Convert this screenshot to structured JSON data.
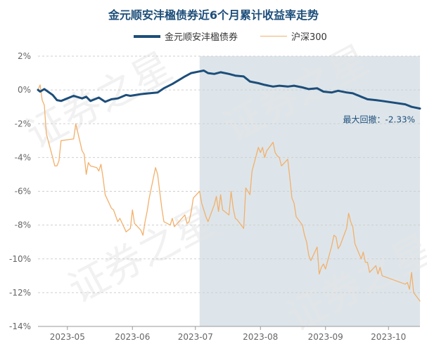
{
  "chart_data": {
    "type": "line",
    "title": "金元顺安沣楹债券近6个月累计收益率走势",
    "xlabel": "",
    "ylabel": "",
    "ylim": [
      -14,
      2
    ],
    "yticks": [
      "2%",
      "0%",
      "-2%",
      "-4%",
      "-6%",
      "-8%",
      "-10%",
      "-12%",
      "-14%"
    ],
    "xticks": [
      "2023-05",
      "2023-06",
      "2023-07",
      "2023-08",
      "2023-09",
      "2023-10"
    ],
    "x_start": "2023-04-17",
    "x_end": "2023-10-16",
    "grid": true,
    "legend_position": "top-center",
    "shaded_region": {
      "from": "2023-07-03",
      "to": "2023-10-16",
      "color": "#dde5ea"
    },
    "annotation": "最大回撤：-2.33%",
    "watermark": "证券之星",
    "colors": {
      "fund": "#1d4e7a",
      "index": "#f2b06c",
      "title": "#1d4e7a"
    },
    "series": [
      {
        "name": "金元顺安沣楹债券",
        "color": "#1d4e7a",
        "points": [
          [
            "2023-04-17",
            0.0
          ],
          [
            "2023-04-18",
            -0.1
          ],
          [
            "2023-04-20",
            0.05
          ],
          [
            "2023-04-24",
            -0.3
          ],
          [
            "2023-04-26",
            -0.6
          ],
          [
            "2023-04-28",
            -0.65
          ],
          [
            "2023-05-04",
            -0.35
          ],
          [
            "2023-05-08",
            -0.5
          ],
          [
            "2023-05-10",
            -0.4
          ],
          [
            "2023-05-12",
            -0.65
          ],
          [
            "2023-05-16",
            -0.45
          ],
          [
            "2023-05-19",
            -0.7
          ],
          [
            "2023-05-22",
            -0.55
          ],
          [
            "2023-05-25",
            -0.5
          ],
          [
            "2023-05-29",
            -0.3
          ],
          [
            "2023-05-31",
            -0.35
          ],
          [
            "2023-06-05",
            -0.25
          ],
          [
            "2023-06-09",
            -0.2
          ],
          [
            "2023-06-13",
            -0.15
          ],
          [
            "2023-06-16",
            0.1
          ],
          [
            "2023-06-20",
            0.35
          ],
          [
            "2023-06-26",
            0.8
          ],
          [
            "2023-06-29",
            1.0
          ],
          [
            "2023-07-03",
            1.1
          ],
          [
            "2023-07-05",
            1.15
          ],
          [
            "2023-07-07",
            1.0
          ],
          [
            "2023-07-10",
            0.95
          ],
          [
            "2023-07-13",
            1.05
          ],
          [
            "2023-07-17",
            0.95
          ],
          [
            "2023-07-20",
            0.85
          ],
          [
            "2023-07-24",
            0.8
          ],
          [
            "2023-07-27",
            0.5
          ],
          [
            "2023-07-31",
            0.4
          ],
          [
            "2023-08-03",
            0.3
          ],
          [
            "2023-08-07",
            0.2
          ],
          [
            "2023-08-10",
            0.25
          ],
          [
            "2023-08-14",
            0.2
          ],
          [
            "2023-08-17",
            0.25
          ],
          [
            "2023-08-21",
            0.15
          ],
          [
            "2023-08-24",
            0.05
          ],
          [
            "2023-08-28",
            0.1
          ],
          [
            "2023-08-31",
            -0.1
          ],
          [
            "2023-09-04",
            -0.15
          ],
          [
            "2023-09-07",
            -0.05
          ],
          [
            "2023-09-11",
            -0.15
          ],
          [
            "2023-09-14",
            -0.2
          ],
          [
            "2023-09-18",
            -0.4
          ],
          [
            "2023-09-21",
            -0.55
          ],
          [
            "2023-09-25",
            -0.6
          ],
          [
            "2023-09-28",
            -0.65
          ],
          [
            "2023-10-09",
            -0.85
          ],
          [
            "2023-10-12",
            -1.0
          ],
          [
            "2023-10-16",
            -1.1
          ]
        ]
      },
      {
        "name": "沪深300",
        "color": "#f2b06c",
        "points": [
          [
            "2023-04-17",
            0.0
          ],
          [
            "2023-04-18",
            0.3
          ],
          [
            "2023-04-19",
            -0.6
          ],
          [
            "2023-04-20",
            -0.9
          ],
          [
            "2023-04-21",
            -2.6
          ],
          [
            "2023-04-24",
            -4.0
          ],
          [
            "2023-04-25",
            -4.5
          ],
          [
            "2023-04-26",
            -4.5
          ],
          [
            "2023-04-27",
            -4.2
          ],
          [
            "2023-04-28",
            -3.0
          ],
          [
            "2023-05-04",
            -2.9
          ],
          [
            "2023-05-05",
            -2.0
          ],
          [
            "2023-05-08",
            -3.6
          ],
          [
            "2023-05-09",
            -3.8
          ],
          [
            "2023-05-10",
            -5.0
          ],
          [
            "2023-05-11",
            -4.3
          ],
          [
            "2023-05-12",
            -4.5
          ],
          [
            "2023-05-15",
            -4.6
          ],
          [
            "2023-05-16",
            -4.8
          ],
          [
            "2023-05-17",
            -4.4
          ],
          [
            "2023-05-18",
            -5.2
          ],
          [
            "2023-05-19",
            -6.2
          ],
          [
            "2023-05-22",
            -7.0
          ],
          [
            "2023-05-23",
            -7.1
          ],
          [
            "2023-05-25",
            -7.8
          ],
          [
            "2023-05-26",
            -7.6
          ],
          [
            "2023-05-29",
            -8.4
          ],
          [
            "2023-05-31",
            -8.2
          ],
          [
            "2023-06-01",
            -7.1
          ],
          [
            "2023-06-02",
            -7.9
          ],
          [
            "2023-06-05",
            -8.3
          ],
          [
            "2023-06-06",
            -8.6
          ],
          [
            "2023-06-07",
            -7.8
          ],
          [
            "2023-06-08",
            -7.2
          ],
          [
            "2023-06-09",
            -6.4
          ],
          [
            "2023-06-12",
            -4.6
          ],
          [
            "2023-06-13",
            -5.0
          ],
          [
            "2023-06-14",
            -6.0
          ],
          [
            "2023-06-15",
            -7.0
          ],
          [
            "2023-06-16",
            -7.8
          ],
          [
            "2023-06-19",
            -8.0
          ],
          [
            "2023-06-20",
            -7.6
          ],
          [
            "2023-06-21",
            -8.1
          ],
          [
            "2023-06-26",
            -7.4
          ],
          [
            "2023-06-27",
            -7.9
          ],
          [
            "2023-06-28",
            -7.8
          ],
          [
            "2023-06-29",
            -7.2
          ],
          [
            "2023-06-30",
            -6.4
          ],
          [
            "2023-07-03",
            -6.0
          ],
          [
            "2023-07-04",
            -6.7
          ],
          [
            "2023-07-05",
            -7.1
          ],
          [
            "2023-07-06",
            -7.5
          ],
          [
            "2023-07-07",
            -7.8
          ],
          [
            "2023-07-10",
            -6.8
          ],
          [
            "2023-07-11",
            -6.3
          ],
          [
            "2023-07-12",
            -7.2
          ],
          [
            "2023-07-13",
            -6.2
          ],
          [
            "2023-07-14",
            -7.1
          ],
          [
            "2023-07-17",
            -7.4
          ],
          [
            "2023-07-18",
            -6.0
          ],
          [
            "2023-07-19",
            -7.0
          ],
          [
            "2023-07-20",
            -7.6
          ],
          [
            "2023-07-21",
            -7.7
          ],
          [
            "2023-07-24",
            -8.2
          ],
          [
            "2023-07-25",
            -5.8
          ],
          [
            "2023-07-26",
            -6.0
          ],
          [
            "2023-07-27",
            -6.2
          ],
          [
            "2023-07-28",
            -4.8
          ],
          [
            "2023-07-31",
            -3.4
          ],
          [
            "2023-08-01",
            -3.7
          ],
          [
            "2023-08-02",
            -3.4
          ],
          [
            "2023-08-03",
            -4.0
          ],
          [
            "2023-08-04",
            -3.6
          ],
          [
            "2023-08-07",
            -3.1
          ],
          [
            "2023-08-08",
            -3.7
          ],
          [
            "2023-08-09",
            -3.9
          ],
          [
            "2023-08-10",
            -4.0
          ],
          [
            "2023-08-11",
            -4.5
          ],
          [
            "2023-08-14",
            -4.1
          ],
          [
            "2023-08-15",
            -5.2
          ],
          [
            "2023-08-16",
            -6.4
          ],
          [
            "2023-08-17",
            -6.7
          ],
          [
            "2023-08-18",
            -7.5
          ],
          [
            "2023-08-21",
            -8.0
          ],
          [
            "2023-08-22",
            -8.6
          ],
          [
            "2023-08-23",
            -9.0
          ],
          [
            "2023-08-24",
            -9.8
          ],
          [
            "2023-08-25",
            -10.1
          ],
          [
            "2023-08-28",
            -9.3
          ],
          [
            "2023-08-29",
            -10.9
          ],
          [
            "2023-08-30",
            -10.5
          ],
          [
            "2023-08-31",
            -10.3
          ],
          [
            "2023-09-01",
            -10.6
          ],
          [
            "2023-09-04",
            -9.2
          ],
          [
            "2023-09-05",
            -8.6
          ],
          [
            "2023-09-06",
            -8.7
          ],
          [
            "2023-09-07",
            -9.4
          ],
          [
            "2023-09-08",
            -9.2
          ],
          [
            "2023-09-11",
            -8.2
          ],
          [
            "2023-09-12",
            -7.3
          ],
          [
            "2023-09-13",
            -7.8
          ],
          [
            "2023-09-14",
            -8.1
          ],
          [
            "2023-09-15",
            -9.1
          ],
          [
            "2023-09-18",
            -10.0
          ],
          [
            "2023-09-19",
            -9.6
          ],
          [
            "2023-09-20",
            -10.2
          ],
          [
            "2023-09-21",
            -10.2
          ],
          [
            "2023-09-22",
            -10.8
          ],
          [
            "2023-09-25",
            -10.4
          ],
          [
            "2023-09-26",
            -10.9
          ],
          [
            "2023-09-27",
            -10.5
          ],
          [
            "2023-09-28",
            -11.0
          ],
          [
            "2023-10-09",
            -11.5
          ],
          [
            "2023-10-10",
            -11.4
          ],
          [
            "2023-10-11",
            -11.8
          ],
          [
            "2023-10-12",
            -10.8
          ],
          [
            "2023-10-13",
            -12.0
          ],
          [
            "2023-10-16",
            -12.5
          ]
        ]
      }
    ]
  }
}
